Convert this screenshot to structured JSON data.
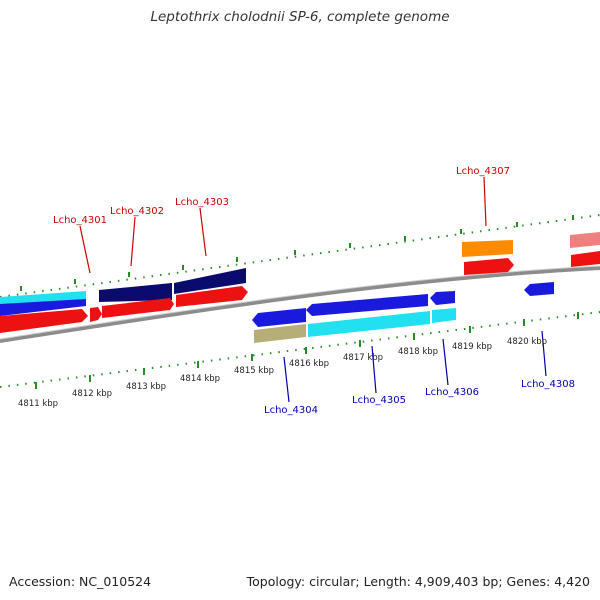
{
  "title": "Leptothrix cholodnii SP-6, complete genome",
  "footer": {
    "accession": "Accession: NC_010524",
    "summary": "Topology: circular; Length: 4,909,403 bp; Genes: 4,420"
  },
  "colors": {
    "backbone": "#8c8c8c",
    "tick": "#2a8a2a",
    "label_forward": "#cc0000",
    "label_reverse": "#0000aa",
    "cds_red": "#ee1111",
    "cds_navy": "#0b0b6e",
    "cds_cyan": "#22e0f0",
    "cds_blue": "#1a1adf",
    "cds_orange": "#ff8c00",
    "cds_olive": "#b7ad78",
    "cds_pink": "#f08080"
  },
  "axis": {
    "unit": "kbp",
    "ticks": [
      "4811 kbp",
      "4812 kbp",
      "4813 kbp",
      "4814 kbp",
      "4815 kbp",
      "4816 kbp",
      "4817 kbp",
      "4818 kbp",
      "4819 kbp",
      "4820 kbp"
    ]
  },
  "genes": {
    "forward": [
      "Lcho_4301",
      "Lcho_4302",
      "Lcho_4303",
      "Lcho_4307"
    ],
    "reverse": [
      "Lcho_4304",
      "Lcho_4305",
      "Lcho_4306",
      "Lcho_4308"
    ]
  }
}
